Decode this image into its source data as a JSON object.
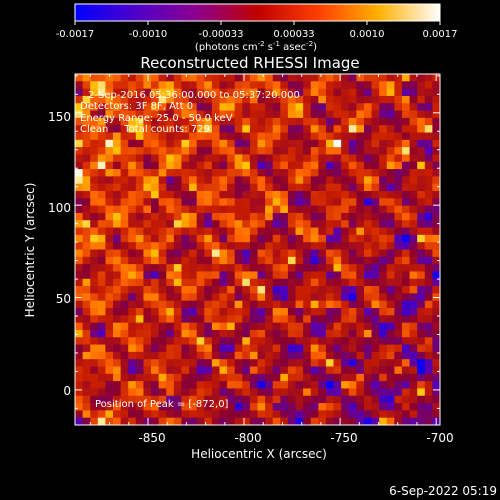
{
  "colorbar": {
    "tick_labels": [
      "-0.0017",
      "-0.0010",
      "-0.00033",
      "0.00033",
      "0.0010",
      "0.0017"
    ],
    "unit_prefix": "(photons cm",
    "unit_exp1": "-2",
    "unit_mid1": " s",
    "unit_exp2": "-1",
    "unit_mid2": " asec",
    "unit_exp3": "-2",
    "unit_suffix": ")",
    "range": [
      -0.0017,
      0.0017
    ]
  },
  "annotations": {
    "time_range": "2-Sep-2016 05:36:00.000 to 05:37:20.000",
    "detectors": "Detectors: 3F 8F, Att 0",
    "energy": "Energy Range: 25.0 - 50.0 keV",
    "algorithm": "Clean     Total counts: 729",
    "peak": "Position of Peak = [-872,0]"
  },
  "footer": {
    "timestamp": "6-Sep-2022 05:19"
  },
  "chart_data": {
    "type": "heatmap",
    "title": "Reconstructed RHESSI Image",
    "xlabel": "Heliocentric X (arcsec)",
    "ylabel": "Heliocentric Y (arcsec)",
    "xlim": [
      -888,
      -698
    ],
    "ylim": [
      -19,
      171
    ],
    "x_ticks": [
      -850,
      -800,
      -750,
      -700
    ],
    "y_ticks": [
      0,
      50,
      100,
      150
    ],
    "x_tick_labels": [
      "-850",
      "-800",
      "-750",
      "-700"
    ],
    "y_tick_labels": [
      "0",
      "50",
      "100",
      "150"
    ],
    "colormap": [
      "#0000ff",
      "#5a00b0",
      "#8a0030",
      "#c81e00",
      "#ff6400",
      "#ffc800",
      "#ffffff"
    ],
    "pixel_size": 4
  }
}
